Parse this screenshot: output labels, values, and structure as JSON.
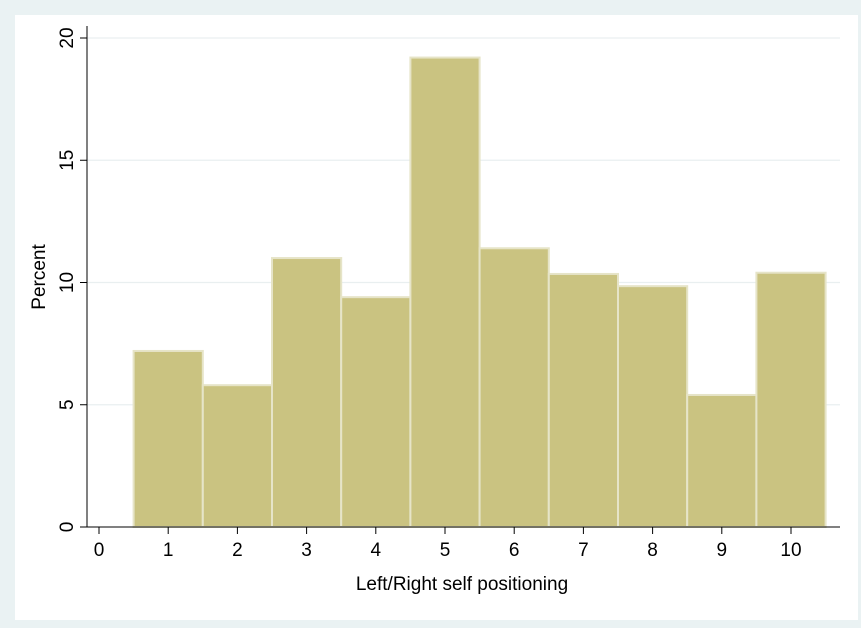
{
  "chart_data": {
    "type": "bar",
    "title": "",
    "xlabel": "Left/Right self positioning",
    "ylabel": "Percent",
    "categories": [
      1,
      2,
      3,
      4,
      5,
      6,
      7,
      8,
      9,
      10
    ],
    "values": [
      7.2,
      5.8,
      11.0,
      9.4,
      19.2,
      11.4,
      10.35,
      9.85,
      5.4,
      10.4
    ],
    "xlim": [
      0,
      10.5
    ],
    "ylim": [
      0,
      20
    ],
    "xticks": [
      "0",
      "1",
      "2",
      "3",
      "4",
      "5",
      "6",
      "7",
      "8",
      "9",
      "10"
    ],
    "yticks": [
      "0",
      "5",
      "10",
      "15",
      "20"
    ],
    "grid": true,
    "colors": {
      "bar_fill": "#cac381",
      "bar_stroke": "#e6e4c8",
      "plot_background": "#ffffff",
      "page_background": "#eaf2f3",
      "gridline": "#e9eff0",
      "axis": "#000000"
    }
  }
}
